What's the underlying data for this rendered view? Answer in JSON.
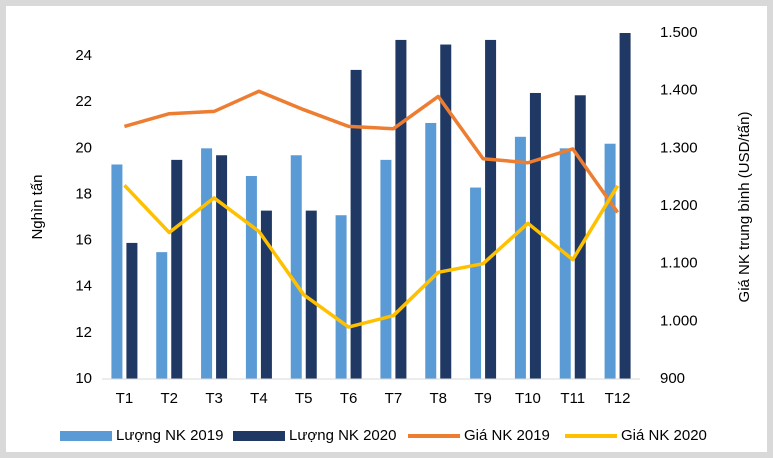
{
  "chart_data": {
    "type": "bar",
    "categories": [
      "T1",
      "T2",
      "T3",
      "T4",
      "T5",
      "T6",
      "T7",
      "T8",
      "T9",
      "T10",
      "T11",
      "T12"
    ],
    "ylabel": "Nghìn tấn",
    "y2label": "Giá NK trung bình (USD/tấn)",
    "ylim": [
      10,
      25
    ],
    "yticks": [
      10,
      12,
      14,
      16,
      18,
      20,
      22,
      24
    ],
    "y2lim": [
      900,
      1500
    ],
    "y2ticks": [
      900,
      {
        "value": 1000,
        "label": "1.000"
      },
      {
        "value": 1100,
        "label": "1.100"
      },
      {
        "value": 1200,
        "label": "1.200"
      },
      {
        "value": 1300,
        "label": "1.300"
      },
      {
        "value": 1400,
        "label": "1.400"
      },
      {
        "value": 1500,
        "label": "1.500"
      }
    ],
    "grid": false,
    "legend": "bottom",
    "series": [
      {
        "name": "Lượng NK 2019",
        "type": "bar",
        "color": "#5b9bd5",
        "values": [
          19.3,
          15.5,
          20.0,
          18.8,
          19.7,
          17.1,
          19.5,
          21.1,
          18.3,
          20.5,
          20.0,
          20.2
        ]
      },
      {
        "name": "Lượng NK 2020",
        "type": "bar",
        "color": "#1f3864",
        "values": [
          15.9,
          19.5,
          19.7,
          17.3,
          17.3,
          23.4,
          24.7,
          24.5,
          24.7,
          22.4,
          22.3,
          25.0
        ]
      },
      {
        "name": "Giá NK 2019",
        "type": "line",
        "axis": "y2",
        "color": "#ed7d31",
        "values": [
          1338,
          1360,
          1364,
          1399,
          1367,
          1338,
          1334,
          1390,
          1282,
          1275,
          1299,
          1189
        ]
      },
      {
        "name": "Giá NK 2020",
        "type": "line",
        "axis": "y2",
        "color": "#ffc000",
        "values": [
          1236,
          1154,
          1214,
          1156,
          1046,
          990,
          1010,
          1085,
          1100,
          1170,
          1107,
          1235
        ]
      }
    ]
  }
}
